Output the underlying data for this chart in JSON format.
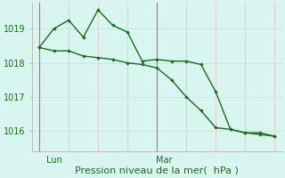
{
  "line1_x": [
    0,
    1,
    2,
    3,
    4,
    5,
    6,
    7,
    8,
    9,
    10,
    11,
    12,
    13,
    14,
    15,
    16
  ],
  "line1_y": [
    1018.45,
    1018.35,
    1018.35,
    1018.2,
    1018.15,
    1018.1,
    1018.0,
    1017.95,
    1017.85,
    1017.5,
    1017.0,
    1016.6,
    1016.1,
    1016.05,
    1015.95,
    1015.9,
    1015.85
  ],
  "line2_x": [
    0,
    1,
    2,
    3,
    4,
    5,
    6,
    7,
    8,
    9,
    10,
    11,
    12,
    13,
    14,
    15,
    16
  ],
  "line2_y": [
    1018.45,
    1019.0,
    1019.25,
    1018.75,
    1019.55,
    1019.1,
    1018.9,
    1018.05,
    1018.1,
    1018.05,
    1018.05,
    1017.95,
    1017.15,
    1016.05,
    1015.95,
    1015.95,
    1015.85
  ],
  "line_color": "#1a6b1a",
  "bg_color": "#d8f5f0",
  "grid_color_h": "#c8e8e0",
  "grid_color_v": "#e8c8c8",
  "axis_label": "Pression niveau de la mer(  hPa )",
  "ylim_low": 1015.4,
  "ylim_high": 1019.75,
  "yticks": [
    1016,
    1017,
    1018,
    1019
  ],
  "lun_tick_x": 1.0,
  "mar_tick_x": 8.5,
  "lun_line_x": 0.0,
  "mar_line_x": 8.0,
  "xlim_low": -0.5,
  "xlim_high": 16.5,
  "xlabel_fontsize": 8,
  "tick_fontsize": 7
}
